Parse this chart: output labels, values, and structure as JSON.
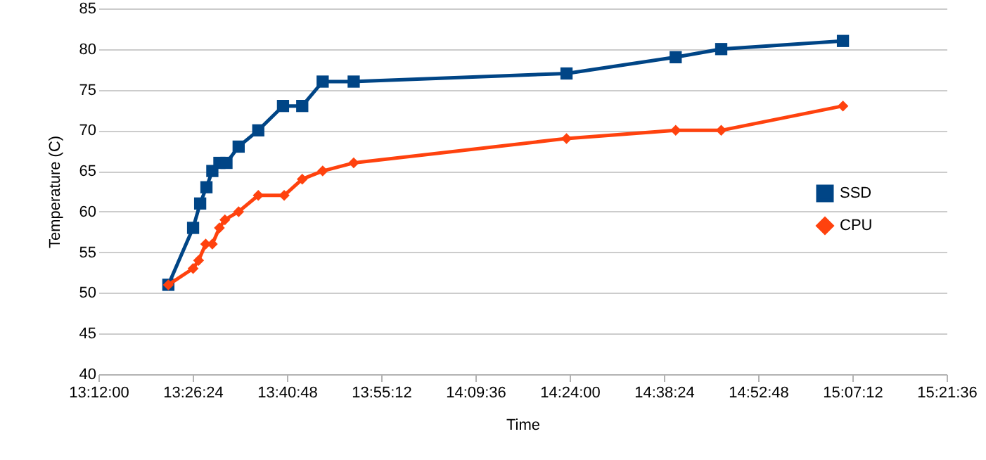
{
  "chart_data": {
    "type": "line",
    "xlabel": "Time",
    "ylabel": "Temperature (C)",
    "xlim": [
      13.2,
      15.36
    ],
    "xticks": [
      {
        "value": 13.2,
        "label": "13:12:00"
      },
      {
        "value": 13.44,
        "label": "13:26:24"
      },
      {
        "value": 13.68,
        "label": "13:40:48"
      },
      {
        "value": 13.92,
        "label": "13:55:12"
      },
      {
        "value": 14.16,
        "label": "14:09:36"
      },
      {
        "value": 14.4,
        "label": "14:24:00"
      },
      {
        "value": 14.64,
        "label": "14:38:24"
      },
      {
        "value": 14.88,
        "label": "14:52:48"
      },
      {
        "value": 15.12,
        "label": "15:07:12"
      },
      {
        "value": 15.36,
        "label": "15:21:36"
      }
    ],
    "ylim": [
      40,
      85
    ],
    "yticks": [
      40,
      45,
      50,
      55,
      60,
      65,
      70,
      75,
      80,
      85
    ],
    "grid": "y",
    "legend": "right",
    "series": [
      {
        "name": "SSD",
        "color": "#004586",
        "marker": "square",
        "x": [
          13.378,
          13.441,
          13.459,
          13.475,
          13.49,
          13.508,
          13.526,
          13.557,
          13.607,
          13.67,
          13.719,
          13.771,
          13.85,
          14.392,
          14.67,
          14.786,
          15.096
        ],
        "values": [
          51,
          58,
          61,
          63,
          65,
          66,
          66,
          68,
          70,
          73,
          73,
          76,
          76,
          77,
          79,
          80,
          81
        ]
      },
      {
        "name": "CPU",
        "color": "#ff420e",
        "marker": "diamond",
        "x": [
          13.378,
          13.441,
          13.455,
          13.473,
          13.49,
          13.508,
          13.522,
          13.557,
          13.607,
          13.673,
          13.719,
          13.771,
          13.85,
          14.392,
          14.67,
          14.786,
          15.096
        ],
        "values": [
          51,
          53,
          54,
          56,
          56,
          58,
          59,
          60,
          62,
          62,
          64,
          65,
          66,
          69,
          70,
          70,
          73
        ]
      }
    ]
  }
}
